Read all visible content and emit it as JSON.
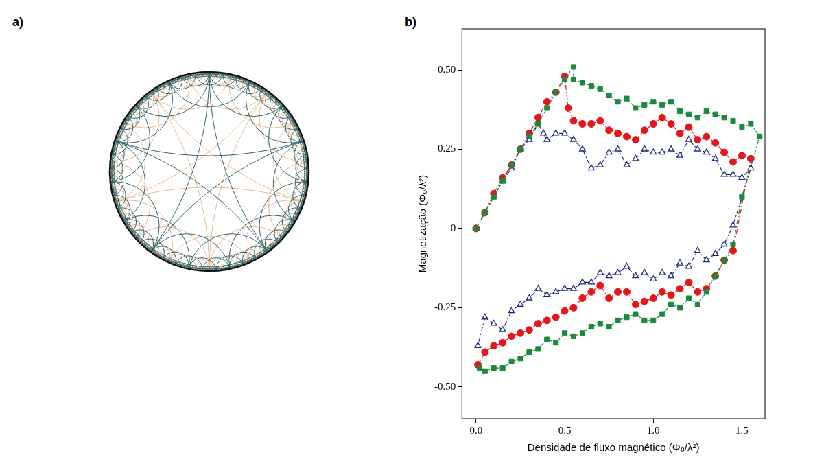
{
  "panel_labels": [
    "a)",
    "b)"
  ],
  "chart_data": {
    "type": "line",
    "x_label": "Densidade de fluxo magnético (Φ₀/λ²)",
    "y_label": "Magnetização (Φ₀/λ²)",
    "xlim": [
      -0.08,
      1.63
    ],
    "xticks": [
      {
        "value": 0,
        "label": "0.0"
      },
      {
        "value": 0.5,
        "label": "0.5"
      },
      {
        "value": 1,
        "label": "1.0"
      },
      {
        "value": 1.5,
        "label": "1.5"
      }
    ],
    "ylim": [
      -0.6,
      0.63
    ],
    "yticks": [
      {
        "value": -0.5,
        "label": "-0.50"
      },
      {
        "value": -0.25,
        "label": "-0.25"
      },
      0,
      {
        "value": 0.25,
        "label": "0.25"
      },
      {
        "value": 0.5,
        "label": "0.50"
      }
    ],
    "grid": false,
    "series": [
      {
        "color": "#1a8a3a",
        "marker": "square",
        "line_style": "dashdot",
        "x": [
          0,
          0.05,
          0.1,
          0.15,
          0.2,
          0.25,
          0.3,
          0.35,
          0.4,
          0.45,
          0.5,
          0.55,
          0.55,
          0.6,
          0.65,
          0.7,
          0.75,
          0.8,
          0.85,
          0.9,
          0.95,
          1.0,
          1.05,
          1.1,
          1.15,
          1.2,
          1.25,
          1.3,
          1.35,
          1.4,
          1.45,
          1.5,
          1.55,
          1.6,
          1.5,
          1.45,
          1.4,
          1.35,
          1.3,
          1.25,
          1.2,
          1.15,
          1.1,
          1.05,
          1.0,
          0.95,
          0.9,
          0.85,
          0.8,
          0.75,
          0.7,
          0.65,
          0.6,
          0.55,
          0.5,
          0.45,
          0.4,
          0.35,
          0.3,
          0.25,
          0.2,
          0.15,
          0.1,
          0.05,
          0.02
        ],
        "values": [
          0,
          0.05,
          0.1,
          0.15,
          0.2,
          0.25,
          0.29,
          0.33,
          0.38,
          0.43,
          0.47,
          0.51,
          0.47,
          0.46,
          0.45,
          0.44,
          0.42,
          0.4,
          0.41,
          0.38,
          0.39,
          0.4,
          0.39,
          0.4,
          0.37,
          0.36,
          0.35,
          0.37,
          0.36,
          0.35,
          0.34,
          0.32,
          0.33,
          0.29,
          0.1,
          -0.05,
          -0.1,
          -0.15,
          -0.2,
          -0.24,
          -0.22,
          -0.25,
          -0.24,
          -0.27,
          -0.29,
          -0.29,
          -0.27,
          -0.28,
          -0.29,
          -0.31,
          -0.3,
          -0.31,
          -0.33,
          -0.34,
          -0.33,
          -0.36,
          -0.35,
          -0.38,
          -0.39,
          -0.41,
          -0.42,
          -0.44,
          -0.44,
          -0.45,
          -0.44
        ]
      },
      {
        "color": "#e8141c",
        "marker": "circle",
        "line_style": "dashdot",
        "x": [
          0,
          0.05,
          0.1,
          0.15,
          0.2,
          0.25,
          0.3,
          0.35,
          0.4,
          0.45,
          0.5,
          0.52,
          0.55,
          0.6,
          0.65,
          0.7,
          0.75,
          0.8,
          0.85,
          0.9,
          0.95,
          1.0,
          1.05,
          1.1,
          1.15,
          1.2,
          1.25,
          1.3,
          1.35,
          1.4,
          1.45,
          1.5,
          1.55,
          1.45,
          1.4,
          1.35,
          1.3,
          1.25,
          1.2,
          1.15,
          1.1,
          1.05,
          1.0,
          0.95,
          0.9,
          0.85,
          0.8,
          0.75,
          0.7,
          0.65,
          0.6,
          0.55,
          0.5,
          0.45,
          0.4,
          0.35,
          0.3,
          0.25,
          0.2,
          0.15,
          0.1,
          0.05,
          0.01
        ],
        "values": [
          0,
          0.05,
          0.11,
          0.16,
          0.2,
          0.25,
          0.3,
          0.35,
          0.4,
          0.43,
          0.48,
          0.38,
          0.34,
          0.33,
          0.33,
          0.34,
          0.31,
          0.3,
          0.29,
          0.28,
          0.31,
          0.33,
          0.35,
          0.33,
          0.3,
          0.32,
          0.28,
          0.29,
          0.27,
          0.24,
          0.21,
          0.23,
          0.22,
          -0.07,
          -0.1,
          -0.15,
          -0.19,
          -0.2,
          -0.17,
          -0.19,
          -0.21,
          -0.2,
          -0.22,
          -0.23,
          -0.24,
          -0.2,
          -0.2,
          -0.22,
          -0.18,
          -0.2,
          -0.22,
          -0.25,
          -0.26,
          -0.28,
          -0.29,
          -0.3,
          -0.32,
          -0.33,
          -0.34,
          -0.36,
          -0.37,
          -0.39,
          -0.43
        ]
      },
      {
        "color": "#1c2a7a",
        "marker": "open_triangle",
        "line_style": "dashdot",
        "x": [
          0,
          0.05,
          0.1,
          0.15,
          0.2,
          0.25,
          0.3,
          0.35,
          0.38,
          0.4,
          0.45,
          0.5,
          0.55,
          0.6,
          0.65,
          0.7,
          0.75,
          0.8,
          0.85,
          0.9,
          0.95,
          1.0,
          1.05,
          1.1,
          1.15,
          1.2,
          1.25,
          1.3,
          1.35,
          1.4,
          1.45,
          1.5,
          1.55,
          1.45,
          1.4,
          1.35,
          1.3,
          1.25,
          1.2,
          1.15,
          1.1,
          1.05,
          1.0,
          0.95,
          0.9,
          0.85,
          0.8,
          0.75,
          0.7,
          0.65,
          0.6,
          0.55,
          0.5,
          0.45,
          0.4,
          0.35,
          0.3,
          0.25,
          0.2,
          0.15,
          0.1,
          0.05,
          0.01
        ],
        "values": [
          0,
          0.05,
          0.1,
          0.15,
          0.19,
          0.25,
          0.28,
          0.33,
          0.3,
          0.28,
          0.3,
          0.3,
          0.28,
          0.25,
          0.19,
          0.2,
          0.24,
          0.25,
          0.2,
          0.22,
          0.25,
          0.24,
          0.24,
          0.25,
          0.23,
          0.28,
          0.25,
          0.24,
          0.22,
          0.17,
          0.17,
          0.16,
          0.19,
          0.01,
          -0.05,
          -0.08,
          -0.1,
          -0.07,
          -0.12,
          -0.11,
          -0.15,
          -0.14,
          -0.16,
          -0.14,
          -0.15,
          -0.12,
          -0.14,
          -0.15,
          -0.14,
          -0.17,
          -0.17,
          -0.19,
          -0.19,
          -0.2,
          -0.21,
          -0.19,
          -0.22,
          -0.24,
          -0.26,
          -0.32,
          -0.3,
          -0.28,
          -0.37
        ]
      }
    ]
  }
}
